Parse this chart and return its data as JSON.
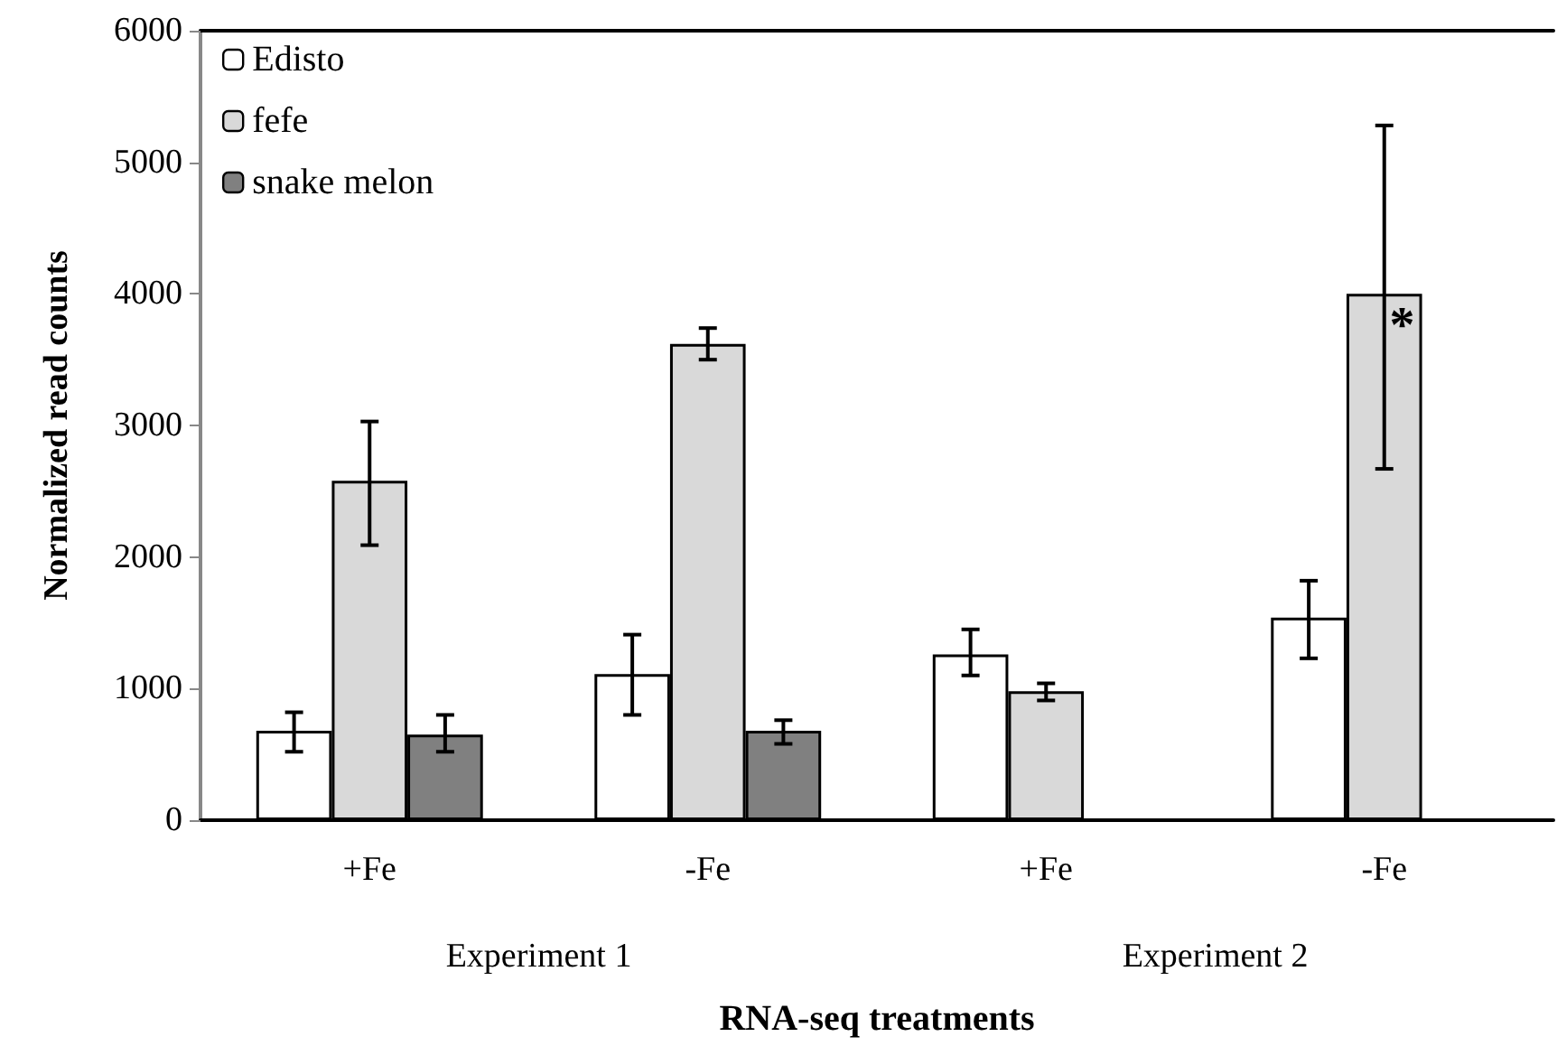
{
  "chart_data": {
    "type": "bar",
    "xlabel": "RNA-seq treatments",
    "ylabel": "Normalized read counts",
    "categories": [
      "+Fe",
      "-Fe",
      "+Fe",
      "-Fe"
    ],
    "series": [
      {
        "name": "Edisto",
        "color": "#ffffff",
        "values": [
          680,
          1110,
          1260,
          1540
        ],
        "errors": [
          [
            520,
            820
          ],
          [
            800,
            1410
          ],
          [
            1100,
            1450
          ],
          [
            1230,
            1820
          ]
        ]
      },
      {
        "name": "fefe",
        "color": "#d9d9d9",
        "values": [
          2580,
          3620,
          980,
          4000
        ],
        "errors": [
          [
            2090,
            3030
          ],
          [
            3500,
            3740
          ],
          [
            910,
            1040
          ],
          [
            2670,
            5280
          ]
        ],
        "value_labels": [
          null,
          null,
          null,
          "*"
        ]
      },
      {
        "name": "snake melon",
        "color": "#808080",
        "values": [
          650,
          680,
          null,
          null
        ],
        "errors": [
          [
            520,
            800
          ],
          [
            580,
            760
          ],
          null,
          null
        ]
      }
    ],
    "annotations": [
      "Experiment 1",
      "Experiment 2"
    ],
    "ylim": [
      0,
      6000
    ],
    "yticks": [
      0,
      1000,
      2000,
      3000,
      4000,
      5000,
      6000
    ],
    "grid": false,
    "legend": "top left"
  }
}
